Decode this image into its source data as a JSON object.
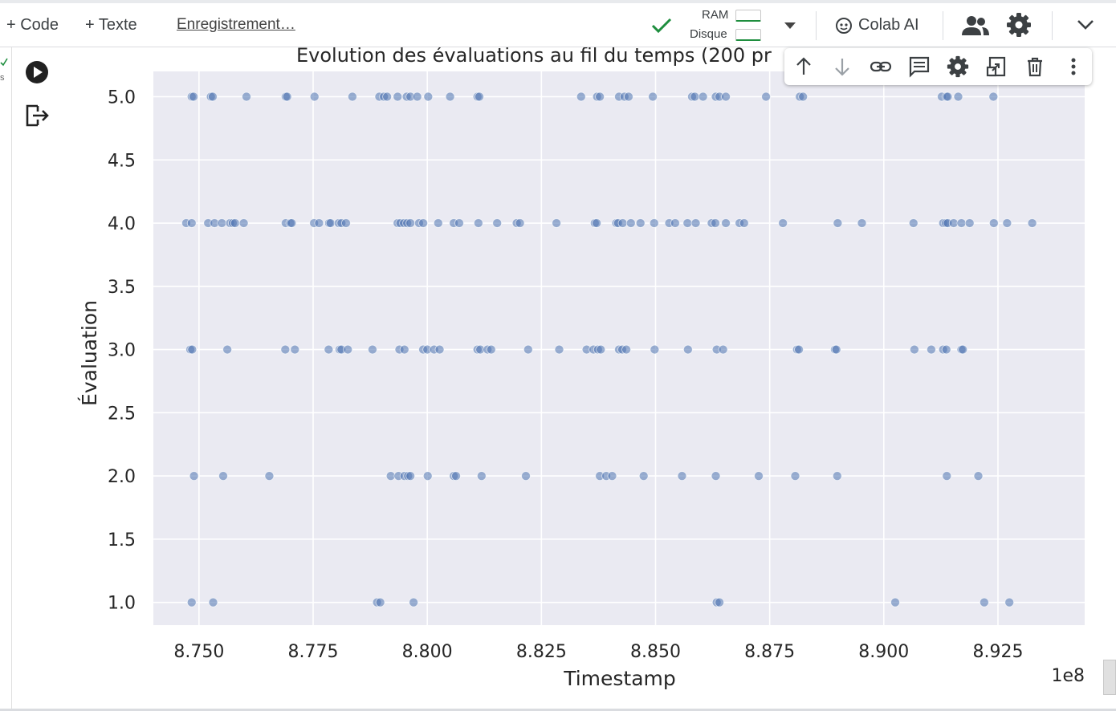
{
  "toolbar": {
    "add_code": "+ Code",
    "add_text": "+ Texte",
    "saving_status": "Enregistrement…",
    "ram_label": "RAM",
    "disk_label": "Disque",
    "colab_ai": "Colab AI"
  },
  "left_rail": {
    "fragment": "s"
  },
  "cell_toolbar": {
    "icons": [
      "arrow-up-icon",
      "arrow-down-icon",
      "link-icon",
      "comment-icon",
      "gear-icon",
      "mirror-cell-icon",
      "trash-icon",
      "more-vert-icon"
    ]
  },
  "colors": {
    "plot_bg": "#eaeaf2",
    "point": "#4c72b0",
    "check": "#1e8e3e"
  },
  "chart_data": {
    "type": "scatter",
    "title": "Évolution des évaluations au fil du temps (200 pr",
    "xlabel": "Timestamp",
    "ylabel": "Évaluation",
    "x_offset_label": "1e8",
    "xlim": [
      8.74,
      8.944
    ],
    "ylim": [
      0.82,
      5.2
    ],
    "x_ticks": [
      "8.750",
      "8.775",
      "8.800",
      "8.825",
      "8.850",
      "8.875",
      "8.900",
      "8.925"
    ],
    "y_ticks": [
      "1.0",
      "1.5",
      "2.0",
      "2.5",
      "3.0",
      "3.5",
      "4.0",
      "4.5",
      "5.0"
    ],
    "grid": true,
    "legend": "none",
    "points": [
      [
        8.7484,
        5
      ],
      [
        8.7488,
        5
      ],
      [
        8.7526,
        5
      ],
      [
        8.753,
        5
      ],
      [
        8.7604,
        5
      ],
      [
        8.769,
        5
      ],
      [
        8.7693,
        5
      ],
      [
        8.7753,
        5
      ],
      [
        8.7836,
        5
      ],
      [
        8.7895,
        5
      ],
      [
        8.7905,
        5
      ],
      [
        8.7912,
        5
      ],
      [
        8.7935,
        5
      ],
      [
        8.7955,
        5
      ],
      [
        8.7963,
        5
      ],
      [
        8.7978,
        5
      ],
      [
        8.8002,
        5
      ],
      [
        8.805,
        5
      ],
      [
        8.811,
        5
      ],
      [
        8.8114,
        5
      ],
      [
        8.8337,
        5
      ],
      [
        8.8372,
        5
      ],
      [
        8.8378,
        5
      ],
      [
        8.842,
        5
      ],
      [
        8.8432,
        5
      ],
      [
        8.8441,
        5
      ],
      [
        8.8494,
        5
      ],
      [
        8.858,
        5
      ],
      [
        8.8586,
        5
      ],
      [
        8.8604,
        5
      ],
      [
        8.8632,
        5
      ],
      [
        8.864,
        5
      ],
      [
        8.8654,
        5
      ],
      [
        8.8742,
        5
      ],
      [
        8.8816,
        5
      ],
      [
        8.8823,
        5
      ],
      [
        8.9127,
        5
      ],
      [
        8.9137,
        5
      ],
      [
        8.914,
        5
      ],
      [
        8.9163,
        5
      ],
      [
        8.924,
        5
      ],
      [
        8.7472,
        4
      ],
      [
        8.7484,
        4
      ],
      [
        8.752,
        4
      ],
      [
        8.7534,
        4
      ],
      [
        8.755,
        4
      ],
      [
        8.7568,
        4
      ],
      [
        8.7574,
        4
      ],
      [
        8.7579,
        4
      ],
      [
        8.7598,
        4
      ],
      [
        8.769,
        4
      ],
      [
        8.77,
        4
      ],
      [
        8.7703,
        4
      ],
      [
        8.7752,
        4
      ],
      [
        8.7763,
        4
      ],
      [
        8.7785,
        4
      ],
      [
        8.7788,
        4
      ],
      [
        8.7806,
        4
      ],
      [
        8.7812,
        4
      ],
      [
        8.7822,
        4
      ],
      [
        8.7935,
        4
      ],
      [
        8.7941,
        4
      ],
      [
        8.7949,
        4
      ],
      [
        8.7956,
        4
      ],
      [
        8.7963,
        4
      ],
      [
        8.7982,
        4
      ],
      [
        8.7991,
        4
      ],
      [
        8.8024,
        4
      ],
      [
        8.8058,
        4
      ],
      [
        8.807,
        4
      ],
      [
        8.8112,
        4
      ],
      [
        8.8153,
        4
      ],
      [
        8.8196,
        4
      ],
      [
        8.8203,
        4
      ],
      [
        8.8283,
        4
      ],
      [
        8.8367,
        4
      ],
      [
        8.8371,
        4
      ],
      [
        8.8414,
        4
      ],
      [
        8.8418,
        4
      ],
      [
        8.8428,
        4
      ],
      [
        8.8446,
        4
      ],
      [
        8.8467,
        4
      ],
      [
        8.8497,
        4
      ],
      [
        8.853,
        4
      ],
      [
        8.8543,
        4
      ],
      [
        8.857,
        4
      ],
      [
        8.8588,
        4
      ],
      [
        8.8623,
        4
      ],
      [
        8.8631,
        4
      ],
      [
        8.8654,
        4
      ],
      [
        8.8684,
        4
      ],
      [
        8.8694,
        4
      ],
      [
        8.8779,
        4
      ],
      [
        8.8899,
        4
      ],
      [
        8.8952,
        4
      ],
      [
        8.9065,
        4
      ],
      [
        8.913,
        4
      ],
      [
        8.9136,
        4
      ],
      [
        8.914,
        4
      ],
      [
        8.9153,
        4
      ],
      [
        8.917,
        4
      ],
      [
        8.9188,
        4
      ],
      [
        8.9241,
        4
      ],
      [
        8.927,
        4
      ],
      [
        8.9325,
        4
      ],
      [
        8.7481,
        3
      ],
      [
        8.7485,
        3
      ],
      [
        8.7562,
        3
      ],
      [
        8.7689,
        3
      ],
      [
        8.771,
        3
      ],
      [
        8.7784,
        3
      ],
      [
        8.7808,
        3
      ],
      [
        8.7812,
        3
      ],
      [
        8.7826,
        3
      ],
      [
        8.788,
        3
      ],
      [
        8.7939,
        3
      ],
      [
        8.795,
        3
      ],
      [
        8.7991,
        3
      ],
      [
        8.8,
        3
      ],
      [
        8.8015,
        3
      ],
      [
        8.8027,
        3
      ],
      [
        8.811,
        3
      ],
      [
        8.8116,
        3
      ],
      [
        8.8132,
        3
      ],
      [
        8.814,
        3
      ],
      [
        8.8221,
        3
      ],
      [
        8.8289,
        3
      ],
      [
        8.8349,
        3
      ],
      [
        8.8364,
        3
      ],
      [
        8.8374,
        3
      ],
      [
        8.838,
        3
      ],
      [
        8.842,
        3
      ],
      [
        8.8427,
        3
      ],
      [
        8.8436,
        3
      ],
      [
        8.8498,
        3
      ],
      [
        8.8571,
        3
      ],
      [
        8.8634,
        3
      ],
      [
        8.8648,
        3
      ],
      [
        8.881,
        3
      ],
      [
        8.8814,
        3
      ],
      [
        8.8893,
        3
      ],
      [
        8.8896,
        3
      ],
      [
        8.9067,
        3
      ],
      [
        8.9104,
        3
      ],
      [
        8.913,
        3
      ],
      [
        8.9137,
        3
      ],
      [
        8.917,
        3
      ],
      [
        8.9173,
        3
      ],
      [
        8.7489,
        2
      ],
      [
        8.7553,
        2
      ],
      [
        8.7654,
        2
      ],
      [
        8.792,
        2
      ],
      [
        8.7937,
        2
      ],
      [
        8.795,
        2
      ],
      [
        8.7958,
        2
      ],
      [
        8.7963,
        2
      ],
      [
        8.8001,
        2
      ],
      [
        8.8058,
        2
      ],
      [
        8.8063,
        2
      ],
      [
        8.8119,
        2
      ],
      [
        8.8216,
        2
      ],
      [
        8.8378,
        2
      ],
      [
        8.8392,
        2
      ],
      [
        8.8405,
        2
      ],
      [
        8.8474,
        2
      ],
      [
        8.8558,
        2
      ],
      [
        8.8632,
        2
      ],
      [
        8.8726,
        2
      ],
      [
        8.8806,
        2
      ],
      [
        8.8898,
        2
      ],
      [
        8.9138,
        2
      ],
      [
        8.9207,
        2
      ],
      [
        8.7484,
        1
      ],
      [
        8.7531,
        1
      ],
      [
        8.789,
        1
      ],
      [
        8.7897,
        1
      ],
      [
        8.797,
        1
      ],
      [
        8.8634,
        1
      ],
      [
        8.864,
        1
      ],
      [
        8.9025,
        1
      ],
      [
        8.922,
        1
      ],
      [
        8.9275,
        1
      ]
    ]
  }
}
